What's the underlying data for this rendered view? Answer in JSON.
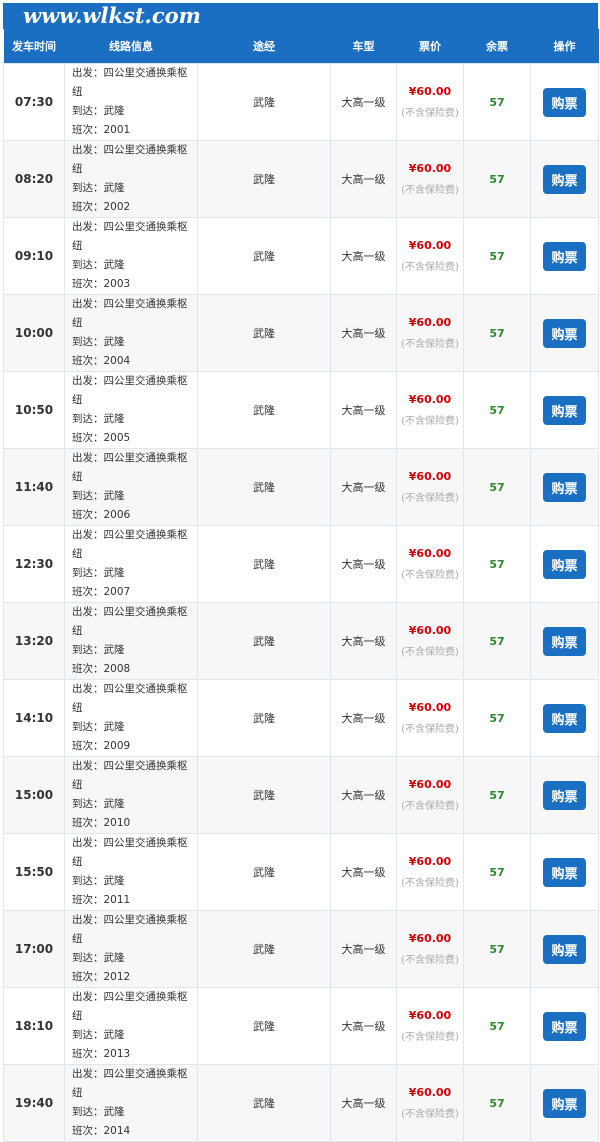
{
  "watermark": "www.wlkst.com",
  "headers": [
    "发车时间",
    "线路信息",
    "途经",
    "车型",
    "票价",
    "余票",
    "操作"
  ],
  "labels": {
    "depart": "出发：",
    "arrive": "到达：",
    "trip": "班次：",
    "note": "(不含保险费)",
    "buy": "购票"
  },
  "colors": {
    "header": "#1b6fc2",
    "price": "#d80000",
    "seats": "#2b8a2b"
  },
  "rows": [
    {
      "time": "07:30",
      "from": "四公里交通换乘枢纽",
      "to": "武隆",
      "trip": "2001",
      "via": "武隆",
      "type": "大高一级",
      "price": "¥60.00",
      "seats": "57"
    },
    {
      "time": "08:20",
      "from": "四公里交通换乘枢纽",
      "to": "武隆",
      "trip": "2002",
      "via": "武隆",
      "type": "大高一级",
      "price": "¥60.00",
      "seats": "57"
    },
    {
      "time": "09:10",
      "from": "四公里交通换乘枢纽",
      "to": "武隆",
      "trip": "2003",
      "via": "武隆",
      "type": "大高一级",
      "price": "¥60.00",
      "seats": "57"
    },
    {
      "time": "10:00",
      "from": "四公里交通换乘枢纽",
      "to": "武隆",
      "trip": "2004",
      "via": "武隆",
      "type": "大高一级",
      "price": "¥60.00",
      "seats": "57"
    },
    {
      "time": "10:50",
      "from": "四公里交通换乘枢纽",
      "to": "武隆",
      "trip": "2005",
      "via": "武隆",
      "type": "大高一级",
      "price": "¥60.00",
      "seats": "57"
    },
    {
      "time": "11:40",
      "from": "四公里交通换乘枢纽",
      "to": "武隆",
      "trip": "2006",
      "via": "武隆",
      "type": "大高一级",
      "price": "¥60.00",
      "seats": "57"
    },
    {
      "time": "12:30",
      "from": "四公里交通换乘枢纽",
      "to": "武隆",
      "trip": "2007",
      "via": "武隆",
      "type": "大高一级",
      "price": "¥60.00",
      "seats": "57"
    },
    {
      "time": "13:20",
      "from": "四公里交通换乘枢纽",
      "to": "武隆",
      "trip": "2008",
      "via": "武隆",
      "type": "大高一级",
      "price": "¥60.00",
      "seats": "57"
    },
    {
      "time": "14:10",
      "from": "四公里交通换乘枢纽",
      "to": "武隆",
      "trip": "2009",
      "via": "武隆",
      "type": "大高一级",
      "price": "¥60.00",
      "seats": "57"
    },
    {
      "time": "15:00",
      "from": "四公里交通换乘枢纽",
      "to": "武隆",
      "trip": "2010",
      "via": "武隆",
      "type": "大高一级",
      "price": "¥60.00",
      "seats": "57"
    },
    {
      "time": "15:50",
      "from": "四公里交通换乘枢纽",
      "to": "武隆",
      "trip": "2011",
      "via": "武隆",
      "type": "大高一级",
      "price": "¥60.00",
      "seats": "57"
    },
    {
      "time": "17:00",
      "from": "四公里交通换乘枢纽",
      "to": "武隆",
      "trip": "2012",
      "via": "武隆",
      "type": "大高一级",
      "price": "¥60.00",
      "seats": "57"
    },
    {
      "time": "18:10",
      "from": "四公里交通换乘枢纽",
      "to": "武隆",
      "trip": "2013",
      "via": "武隆",
      "type": "大高一级",
      "price": "¥60.00",
      "seats": "57"
    },
    {
      "time": "19:40",
      "from": "四公里交通换乘枢纽",
      "to": "武隆",
      "trip": "2014",
      "via": "武隆",
      "type": "大高一级",
      "price": "¥60.00",
      "seats": "57"
    }
  ]
}
